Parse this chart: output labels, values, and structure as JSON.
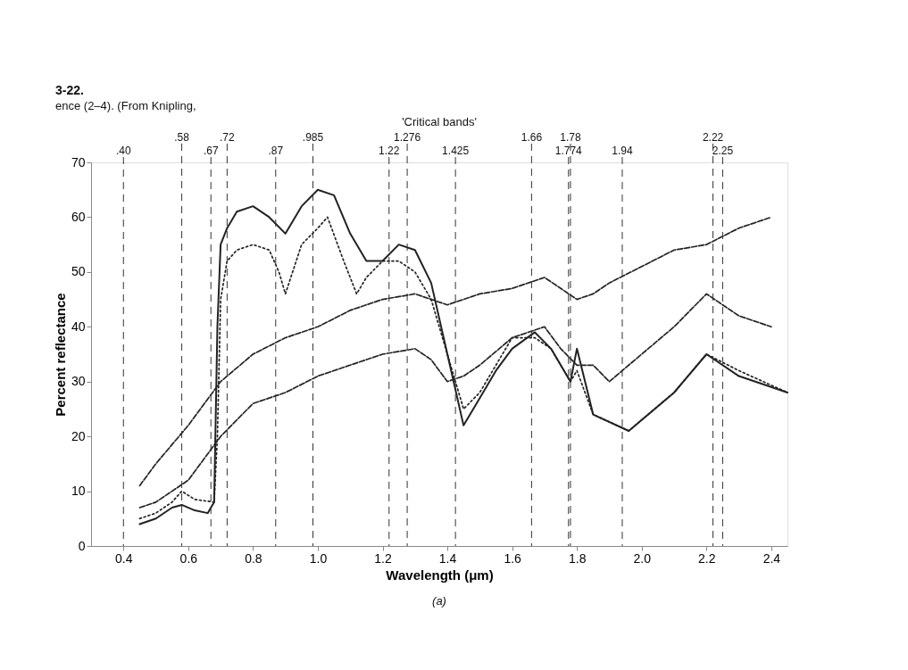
{
  "chart_data": {
    "type": "line",
    "xlabel": "Wavelength (μm)",
    "ylabel": "Percent reflectance",
    "annotations": [
      "3-22.",
      "ence (2–4). (From Knipling,",
      "'Critical bands'",
      "(a)"
    ],
    "xlim": [
      0.3,
      2.45
    ],
    "xticks": [
      0.4,
      0.6,
      0.8,
      {
        "value": 1.0,
        "label": "1.0"
      },
      1.2,
      1.4,
      1.6,
      1.8,
      {
        "value": 2.0,
        "label": "2.0"
      },
      2.2,
      2.4
    ],
    "ylim": [
      0,
      70
    ],
    "yticks": [
      0,
      10,
      20,
      30,
      40,
      50,
      60,
      70
    ],
    "grid": false,
    "series": [
      {
        "color": "#222222",
        "line_style": "solid",
        "x": [
          0.45,
          0.5,
          0.55,
          0.58,
          0.62,
          0.66,
          0.68,
          0.69,
          0.7,
          0.72,
          0.75,
          0.8,
          0.85,
          0.9,
          0.95,
          1.0,
          1.05,
          1.1,
          1.15,
          1.2,
          1.25,
          1.3,
          1.35,
          1.4,
          1.45,
          1.5,
          1.55,
          1.6,
          1.67,
          1.72,
          1.78,
          1.8,
          1.85,
          1.96,
          2.1,
          2.2,
          2.3,
          2.45
        ],
        "values": [
          4,
          5,
          7,
          7.5,
          6.5,
          6,
          8,
          40,
          55,
          58,
          61,
          62,
          60,
          57,
          62,
          65,
          64,
          57,
          52,
          52,
          55,
          54,
          48,
          35,
          22,
          27,
          32,
          36,
          39,
          36,
          30,
          36,
          24,
          21,
          28,
          35,
          31,
          28
        ]
      },
      {
        "color": "#222222",
        "line_style": "dotted",
        "x": [
          0.45,
          0.5,
          0.55,
          0.58,
          0.62,
          0.68,
          0.69,
          0.7,
          0.72,
          0.75,
          0.8,
          0.85,
          0.88,
          0.9,
          0.95,
          1.0,
          1.03,
          1.08,
          1.12,
          1.15,
          1.2,
          1.25,
          1.3,
          1.35,
          1.4,
          1.45,
          1.5,
          1.55,
          1.6,
          1.67,
          1.72,
          1.78,
          1.8,
          1.85,
          1.96,
          2.1,
          2.2,
          2.3,
          2.45
        ],
        "values": [
          5,
          6,
          8,
          10,
          8.5,
          8,
          20,
          45,
          52,
          54,
          55,
          54,
          50,
          46,
          55,
          58,
          60,
          52,
          46,
          49,
          52,
          52,
          50,
          45,
          35,
          25,
          28,
          33,
          38,
          38,
          36,
          30,
          32,
          24,
          21,
          28,
          35,
          32,
          28
        ]
      },
      {
        "color": "#222222",
        "line_style": "dashed",
        "x": [
          0.45,
          0.5,
          0.6,
          0.7,
          0.8,
          0.9,
          1.0,
          1.1,
          1.2,
          1.3,
          1.4,
          1.5,
          1.6,
          1.7,
          1.75,
          1.8,
          1.85,
          1.9,
          2.0,
          2.1,
          2.2,
          2.3,
          2.4
        ],
        "values": [
          11,
          15,
          22,
          30,
          35,
          38,
          40,
          43,
          45,
          46,
          44,
          46,
          47,
          49,
          47,
          45,
          46,
          48,
          51,
          54,
          55,
          58,
          60
        ]
      },
      {
        "color": "#222222",
        "line_style": "dashed",
        "x": [
          0.45,
          0.5,
          0.6,
          0.7,
          0.8,
          0.9,
          1.0,
          1.1,
          1.2,
          1.3,
          1.35,
          1.4,
          1.45,
          1.5,
          1.6,
          1.7,
          1.75,
          1.8,
          1.85,
          1.9,
          2.0,
          2.1,
          2.2,
          2.25,
          2.3,
          2.4
        ],
        "values": [
          7,
          8,
          12,
          20,
          26,
          28,
          31,
          33,
          35,
          36,
          34,
          30,
          31,
          33,
          38,
          40,
          36,
          33,
          33,
          30,
          35,
          40,
          46,
          44,
          42,
          40
        ]
      }
    ],
    "ref_lines": [
      {
        "axis": "x",
        "value": 0.4,
        "label": ".40"
      },
      {
        "axis": "x",
        "value": 0.58,
        "label": ".58"
      },
      {
        "axis": "x",
        "value": 0.67,
        "label": ".67"
      },
      {
        "axis": "x",
        "value": 0.72,
        "label": ".72"
      },
      {
        "axis": "x",
        "value": 0.87,
        "label": ".87"
      },
      {
        "axis": "x",
        "value": 0.985,
        "label": ".985"
      },
      {
        "axis": "x",
        "value": 1.22,
        "label": "1.22"
      },
      {
        "axis": "x",
        "value": 1.276,
        "label": "1.276"
      },
      {
        "axis": "x",
        "value": 1.425,
        "label": "1.425"
      },
      {
        "axis": "x",
        "value": 1.66,
        "label": "1.66"
      },
      {
        "axis": "x",
        "value": 1.774,
        "label": "1.774"
      },
      {
        "axis": "x",
        "value": 1.78,
        "label": "1.78"
      },
      {
        "axis": "x",
        "value": 1.94,
        "label": "1.94"
      },
      {
        "axis": "x",
        "value": 2.22,
        "label": "2.22"
      },
      {
        "axis": "x",
        "value": 2.25,
        "label": "2.25"
      }
    ]
  }
}
